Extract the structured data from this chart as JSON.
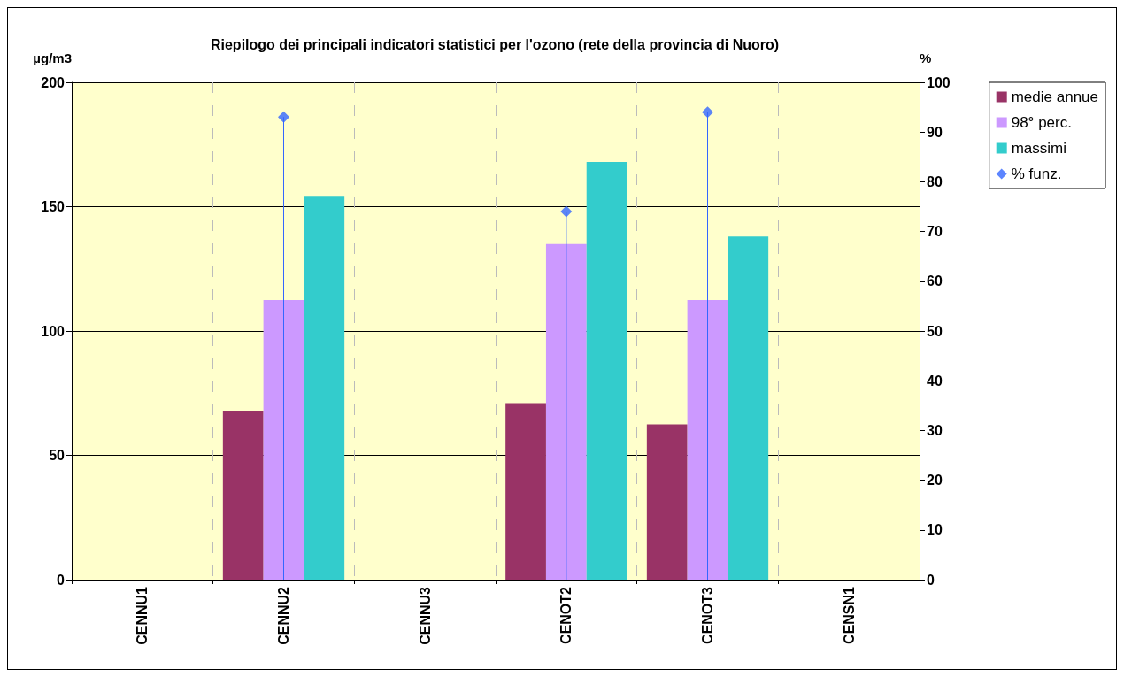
{
  "chart_data": {
    "type": "bar",
    "title": "Riepilogo dei principali indicatori statistici per l'ozono (rete della provincia di Nuoro)",
    "ylabel": "µg/m3",
    "y2label": "%",
    "categories": [
      "CENNU1",
      "CENNU2",
      "CENNU3",
      "CENOT2",
      "CENOT3",
      "CENSN1"
    ],
    "series": [
      {
        "name": "medie annue",
        "color": "#993366",
        "values": [
          null,
          68,
          null,
          71,
          62.5,
          null
        ]
      },
      {
        "name": "98° perc.",
        "color": "#cc99ff",
        "values": [
          null,
          112.5,
          null,
          135,
          112.5,
          null
        ]
      },
      {
        "name": "massimi",
        "color": "#33cccc",
        "values": [
          null,
          154,
          null,
          168,
          138,
          null
        ]
      },
      {
        "name": "% funz.",
        "type": "lollipop",
        "axis": "y2",
        "marker": "diamond",
        "color": "#3366ff",
        "values": [
          null,
          93,
          null,
          74,
          94,
          null
        ]
      }
    ],
    "ylim": [
      0,
      200
    ],
    "yticks": [
      0,
      50,
      100,
      150,
      200
    ],
    "y2lim": [
      0,
      100
    ],
    "y2ticks": [
      0,
      10,
      20,
      30,
      40,
      50,
      60,
      70,
      80,
      90,
      100
    ],
    "grid": true,
    "legend": "right"
  }
}
